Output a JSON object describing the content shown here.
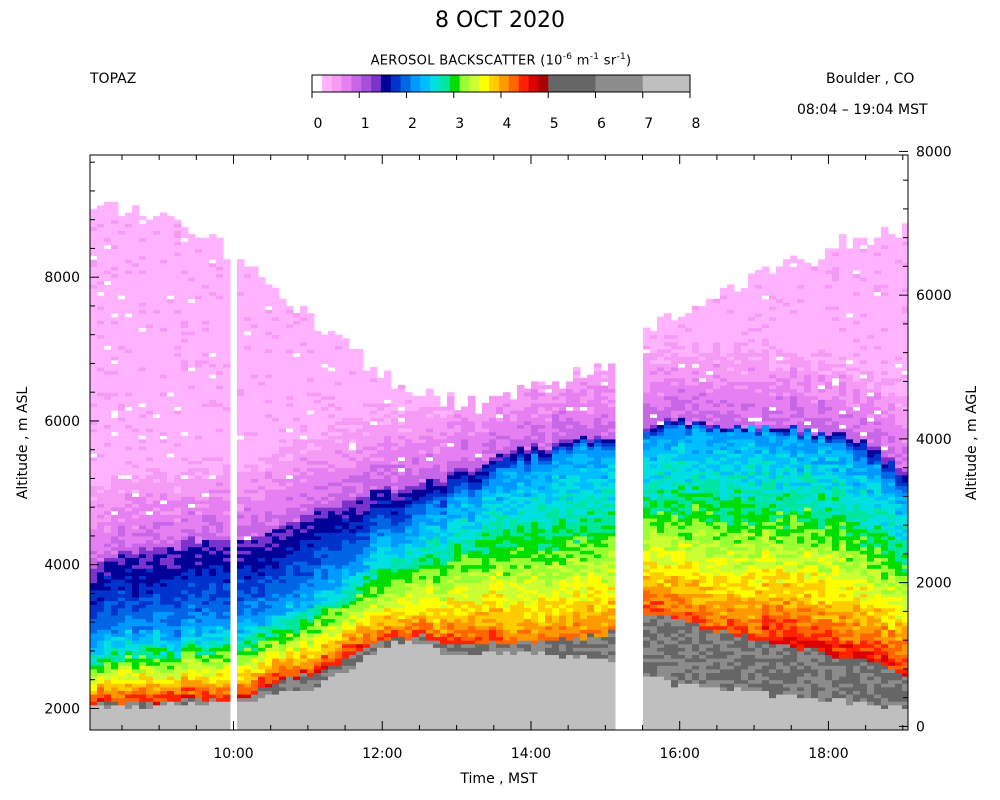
{
  "header": {
    "title": "8 OCT 2020",
    "instrument": "TOPAZ",
    "location": "Boulder , CO",
    "time_range": "08:04 – 19:04 MST"
  },
  "colorbar": {
    "label_prefix": "AEROSOL BACKSCATTER (10",
    "exp1": "-6",
    "label_mid1": " m",
    "exp2": "-1",
    "label_mid2": " sr",
    "exp3": "-1",
    "label_suffix": ")",
    "ticks": [
      "0",
      "1",
      "2",
      "3",
      "4",
      "5",
      "6",
      "7",
      "8"
    ],
    "colors": [
      "#ffffff",
      "#ffb3ff",
      "#f59af5",
      "#e680f2",
      "#c866e8",
      "#a64fd9",
      "#7a33cc",
      "#000099",
      "#0033cc",
      "#0066e6",
      "#0099ff",
      "#00bfff",
      "#00e0e0",
      "#00e6a0",
      "#00dd00",
      "#99ff33",
      "#ccff33",
      "#ffff00",
      "#ffcc00",
      "#ff9900",
      "#ff6600",
      "#ff2200",
      "#dd0000",
      "#aa0000",
      "#666666",
      "#8c8c8c",
      "#bfbfbf"
    ]
  },
  "chart_data": {
    "type": "heatmap",
    "title": "8 OCT 2020",
    "xlabel": "Time , MST",
    "ylabel_left": "Altitude , m ASL",
    "ylabel_right": "Altitude , m AGL",
    "x_ticks": [
      "10:00",
      "12:00",
      "14:00",
      "16:00",
      "18:00"
    ],
    "x_tick_values_hours": [
      10,
      12,
      14,
      16,
      18
    ],
    "xlim_hours": [
      8.07,
      19.07
    ],
    "y_left_ticks": [
      "2000",
      "4000",
      "6000",
      "8000"
    ],
    "y_left_tick_values": [
      2000,
      4000,
      6000,
      8000
    ],
    "ylim_left": [
      1700,
      9700
    ],
    "y_right_ticks": [
      "0",
      "2000",
      "4000",
      "6000",
      "8000"
    ],
    "y_right_tick_values": [
      0,
      2000,
      4000,
      6000,
      8000
    ],
    "ylim_right": [
      -50,
      7950
    ],
    "data_gaps_hours": [
      [
        9.92,
        10.07
      ],
      [
        15.15,
        15.5
      ]
    ],
    "profile_times_hours": [
      8.1,
      8.5,
      9.0,
      9.5,
      10.0,
      10.5,
      11.0,
      11.5,
      12.0,
      12.5,
      13.0,
      13.5,
      14.0,
      14.5,
      15.0,
      15.6,
      16.0,
      16.5,
      17.0,
      17.5,
      18.0,
      18.5,
      19.0
    ],
    "ground_top_m_asl": [
      2000,
      2000,
      2000,
      2050,
      2050,
      2150,
      2250,
      2500,
      2850,
      2900,
      2700,
      2750,
      2750,
      2700,
      2700,
      2450,
      2300,
      2300,
      2200,
      2150,
      2100,
      2050,
      2000
    ],
    "high_layer_base_m_asl": [
      2050,
      2050,
      2050,
      2100,
      2100,
      2300,
      2450,
      2650,
      2950,
      3000,
      2850,
      2900,
      2900,
      2950,
      3000,
      3300,
      3200,
      3050,
      2950,
      2850,
      2750,
      2650,
      2400
    ],
    "boundary_layer_top_m_asl": [
      3000,
      3050,
      3050,
      3100,
      3150,
      3300,
      3500,
      3900,
      4300,
      4600,
      4850,
      5150,
      5350,
      5500,
      5650,
      5700,
      5850,
      5900,
      5850,
      5800,
      5700,
      5400,
      5000
    ],
    "aerosol_layer_top_m_asl": [
      4000,
      4150,
      4200,
      4300,
      4300,
      4400,
      4650,
      4850,
      5000,
      5100,
      5250,
      5450,
      5600,
      5700,
      5750,
      5900,
      6000,
      5950,
      5900,
      5900,
      5800,
      5700,
      5300
    ],
    "signal_top_m_asl": [
      9000,
      8900,
      8800,
      8600,
      8300,
      7900,
      7450,
      7000,
      6650,
      6400,
      6200,
      6200,
      6400,
      6600,
      6750,
      7300,
      7400,
      7700,
      7950,
      8150,
      8350,
      8550,
      8650
    ]
  }
}
